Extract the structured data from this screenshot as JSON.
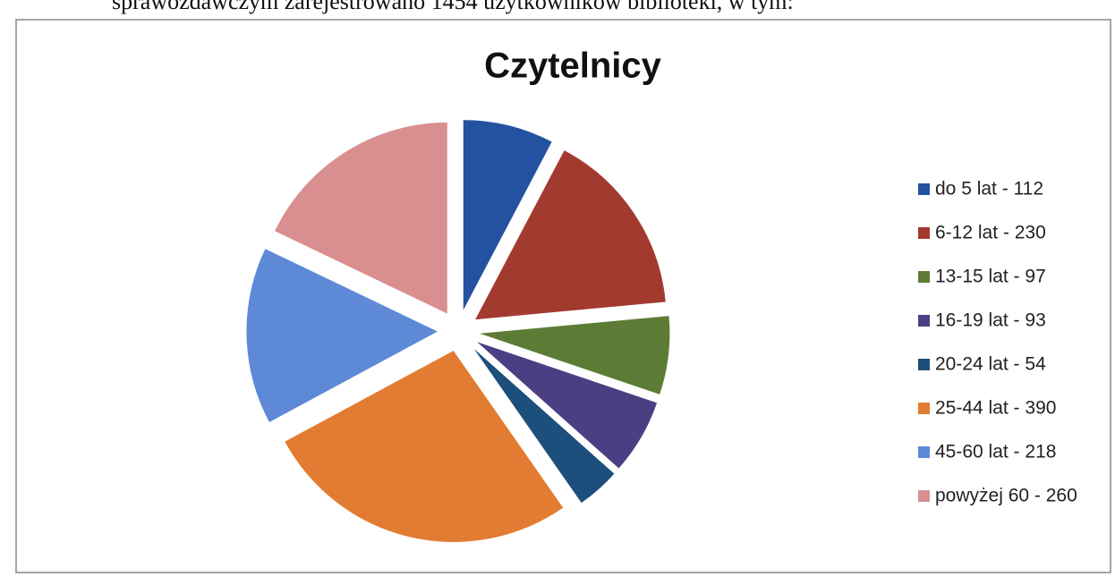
{
  "caption": "sprawozdawczym zarejestrowano 1454 użytkowników biblioteki, w tym:",
  "chart_data": {
    "type": "pie",
    "title": "Czytelnicy",
    "categories": [
      "do 5 lat - 112",
      "6-12 lat - 230",
      "13-15 lat - 97",
      "16-19 lat - 93",
      "20-24 lat - 54",
      "25-44 lat - 390",
      "45-60 lat - 218",
      "powyżej 60 - 260"
    ],
    "values": [
      112,
      230,
      97,
      93,
      54,
      390,
      218,
      260
    ],
    "colors": [
      "#2452a0",
      "#a33a30",
      "#5c7c35",
      "#4b3f83",
      "#1d4f7d",
      "#e27c32",
      "#5d89d6",
      "#d98f8f"
    ],
    "legend": "right"
  }
}
